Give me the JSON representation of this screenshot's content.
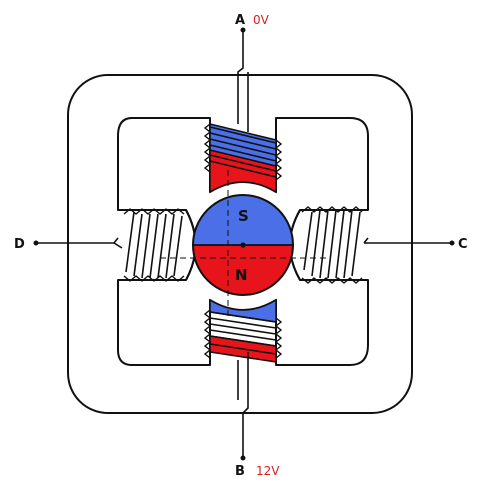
{
  "terminals": {
    "a": {
      "label": "A",
      "voltage": "0V"
    },
    "b": {
      "label": "B",
      "voltage": "12V"
    },
    "c": {
      "label": "C"
    },
    "d": {
      "label": "D"
    }
  },
  "rotor": {
    "south_label": "S",
    "north_label": "N"
  },
  "colors": {
    "south": "#4a6fe6",
    "north": "#e8141b",
    "voltage_text": "#d42222",
    "stroke": "#111111"
  }
}
